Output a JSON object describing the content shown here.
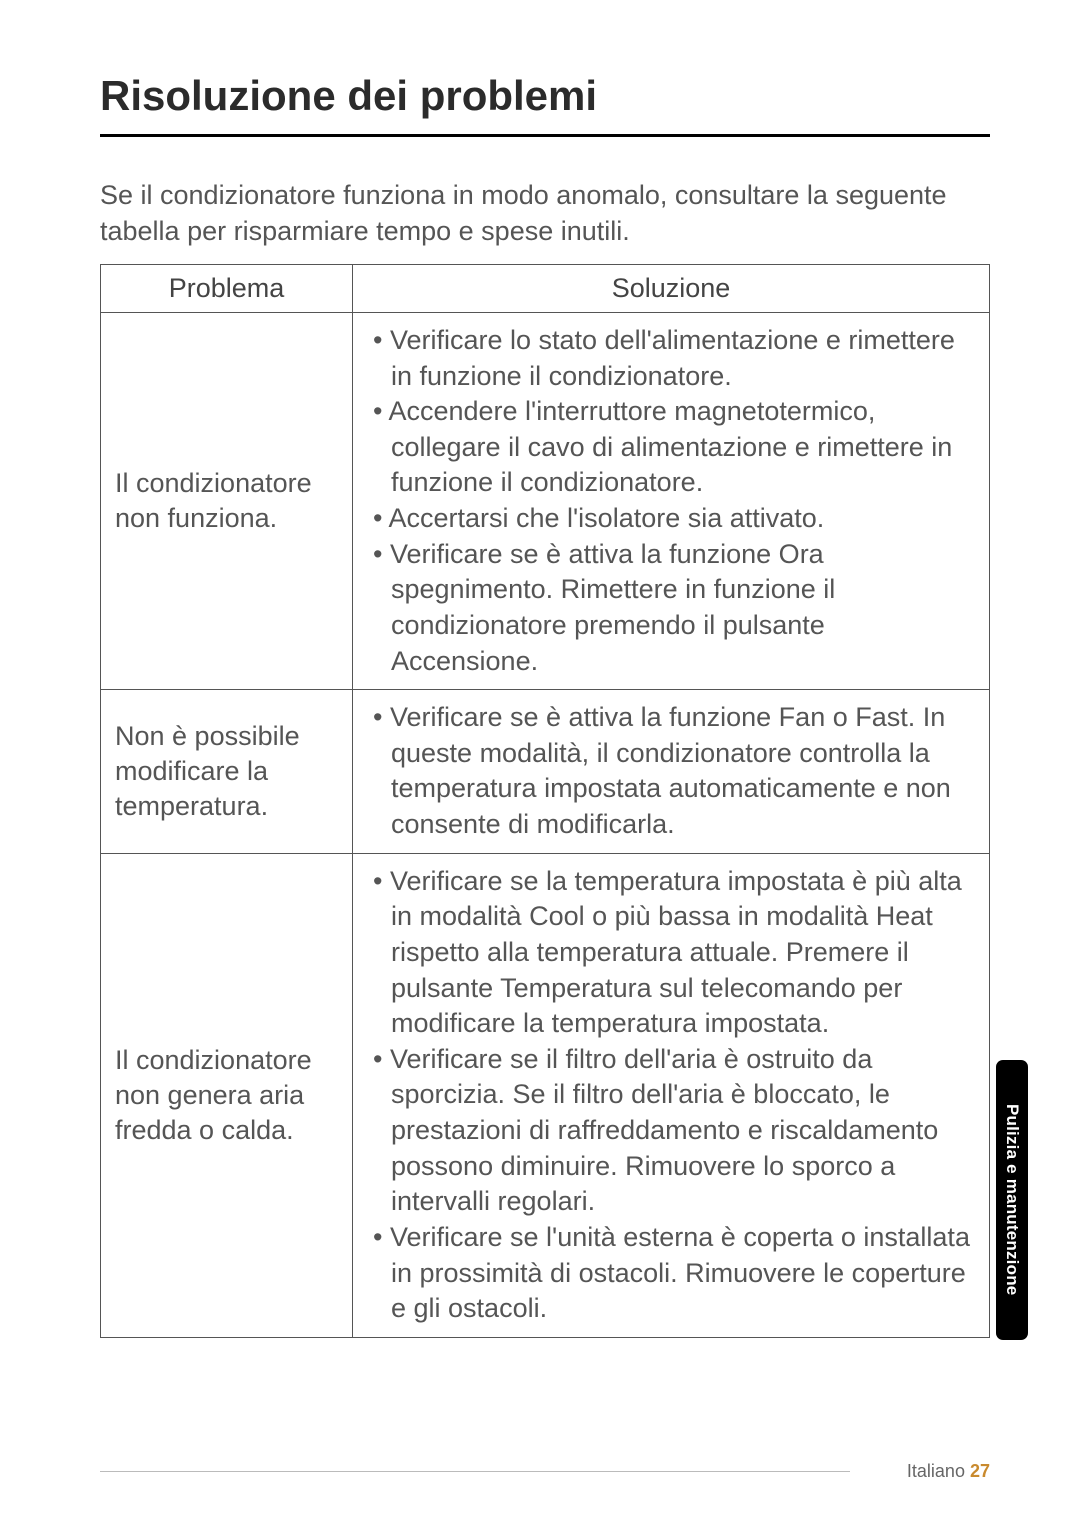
{
  "page": {
    "title": "Risoluzione dei problemi",
    "intro": "Se il condizionatore funziona in modo anomalo, consultare la seguente tabella per risparmiare tempo e spese inutili."
  },
  "table": {
    "headers": {
      "problem": "Problema",
      "solution": "Soluzione"
    },
    "rows": [
      {
        "problem": "Il condizionatore non funziona.",
        "solutions": [
          "Verificare lo stato dell'alimentazione e rimettere in funzione il condizionatore.",
          "Accendere l'interruttore magnetotermico, collegare il cavo di alimentazione e rimettere in funzione il condizionatore.",
          "Accertarsi che l'isolatore sia attivato.",
          "Verificare se è attiva la funzione Ora spegnimento. Rimettere in funzione il condizionatore premendo il pulsante Accensione."
        ]
      },
      {
        "problem": "Non è possibile modificare la temperatura.",
        "solutions": [
          "Verificare se è attiva la funzione Fan o Fast. In queste modalità, il condizionatore controlla la temperatura impostata automaticamente e non consente di modificarla."
        ]
      },
      {
        "problem": "Il condizionatore non genera aria fredda o calda.",
        "solutions": [
          "Verificare se la temperatura impostata è più alta in modalità Cool o più bassa in modalità Heat rispetto alla temperatura attuale. Premere il pulsante Temperatura sul telecomando per modificare la temperatura impostata.",
          "Verificare se il filtro dell'aria è ostruito da sporcizia. Se il filtro dell'aria è bloccato, le prestazioni di raffreddamento e riscaldamento possono diminuire. Rimuovere lo sporco a intervalli regolari.",
          "Verificare se l'unità esterna è coperta o installata in prossimità di ostacoli. Rimuovere le coperture e gli ostacoli."
        ]
      }
    ]
  },
  "sideTab": "Pulizia e manutenzione",
  "footer": {
    "language": "Italiano",
    "pageNumber": "27"
  }
}
